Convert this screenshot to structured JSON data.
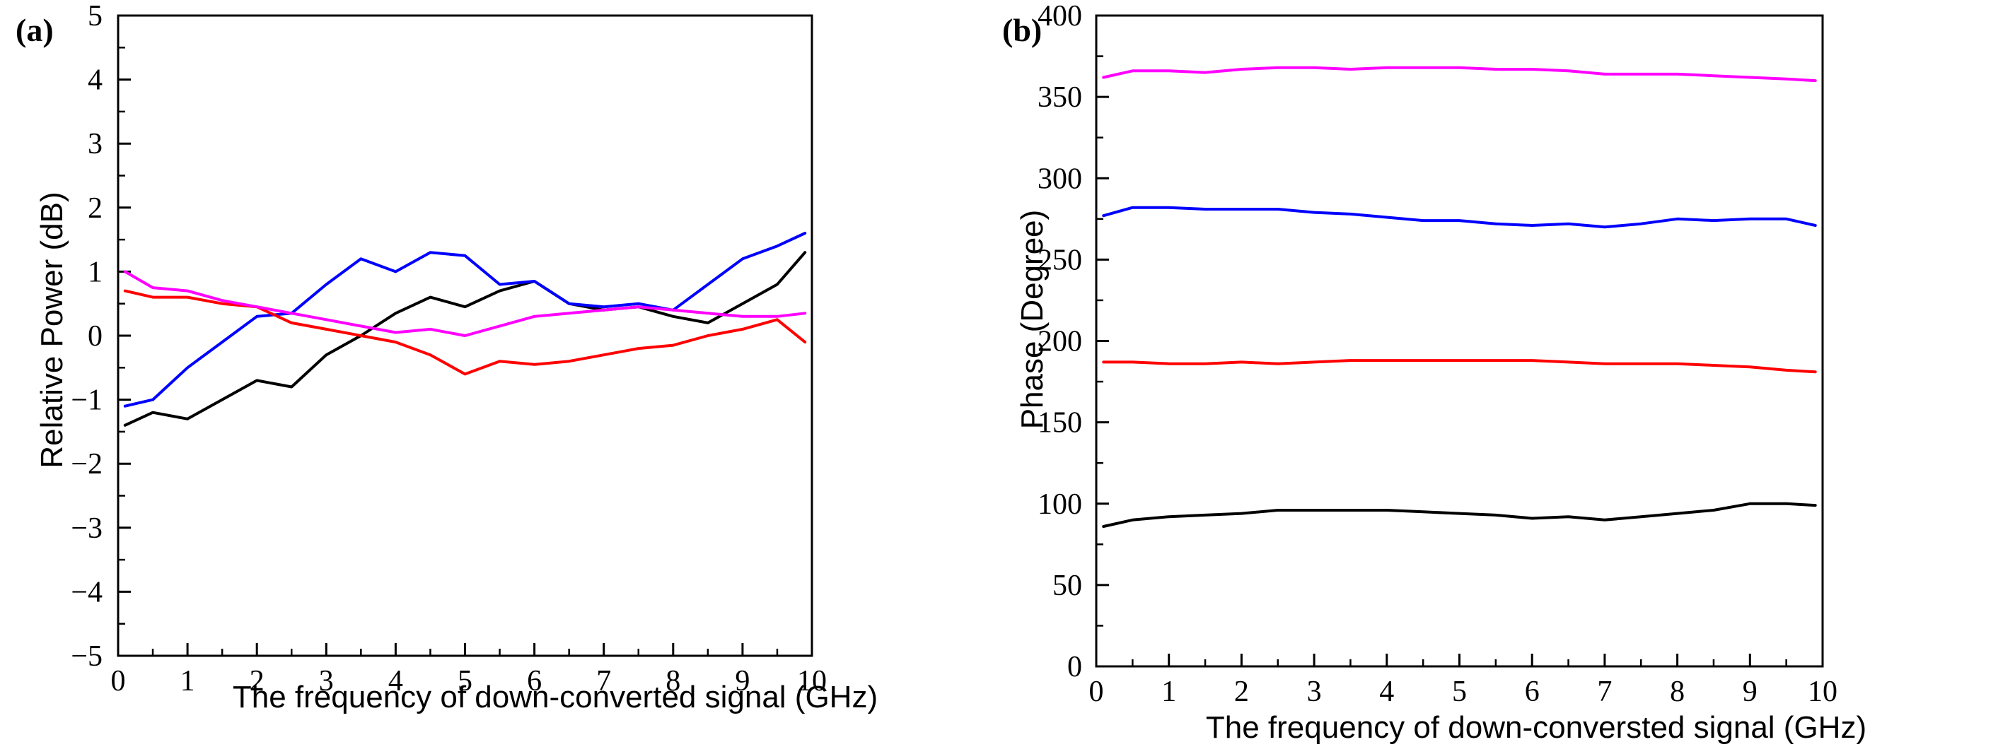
{
  "chart_data": [
    {
      "type": "line",
      "panel_label": "(a)",
      "xlabel": "The frequency of down-converted signal (GHz)",
      "ylabel": "Relative Power (dB)",
      "xlim": [
        0,
        10
      ],
      "ylim": [
        -5,
        5
      ],
      "xticks": [
        0,
        1,
        2,
        3,
        4,
        5,
        6,
        7,
        8,
        9,
        10
      ],
      "yticks": [
        -5,
        -4,
        -3,
        -2,
        -1,
        0,
        1,
        2,
        3,
        4,
        5
      ],
      "xtick_labels": [
        "0",
        "1",
        "2",
        "3",
        "4",
        "5",
        "6",
        "7",
        "8",
        "9",
        "10"
      ],
      "ytick_labels": [
        "−5",
        "−4",
        "−3",
        "−2",
        "−1",
        "0",
        "1",
        "2",
        "3",
        "4",
        "5"
      ],
      "grid": false,
      "series": [
        {
          "name": "black",
          "color": "#000000",
          "x": [
            0.1,
            0.5,
            1.0,
            1.5,
            2.0,
            2.5,
            3.0,
            3.5,
            4.0,
            4.5,
            5.0,
            5.5,
            6.0,
            6.5,
            7.0,
            7.5,
            8.0,
            8.5,
            9.0,
            9.5,
            9.9
          ],
          "y": [
            -1.4,
            -1.2,
            -1.3,
            -1.0,
            -0.7,
            -0.8,
            -0.3,
            0.0,
            0.35,
            0.6,
            0.45,
            0.7,
            0.85,
            0.5,
            0.4,
            0.45,
            0.3,
            0.2,
            0.5,
            0.8,
            1.3
          ]
        },
        {
          "name": "blue",
          "color": "#0000ff",
          "x": [
            0.1,
            0.5,
            1.0,
            1.5,
            2.0,
            2.5,
            3.0,
            3.5,
            4.0,
            4.5,
            5.0,
            5.5,
            6.0,
            6.5,
            7.0,
            7.5,
            8.0,
            8.5,
            9.0,
            9.5,
            9.9
          ],
          "y": [
            -1.1,
            -1.0,
            -0.5,
            -0.1,
            0.3,
            0.35,
            0.8,
            1.2,
            1.0,
            1.3,
            1.25,
            0.8,
            0.85,
            0.5,
            0.45,
            0.5,
            0.4,
            0.8,
            1.2,
            1.4,
            1.6
          ]
        },
        {
          "name": "red",
          "color": "#ff0000",
          "x": [
            0.1,
            0.5,
            1.0,
            1.5,
            2.0,
            2.5,
            3.0,
            3.5,
            4.0,
            4.5,
            5.0,
            5.5,
            6.0,
            6.5,
            7.0,
            7.5,
            8.0,
            8.5,
            9.0,
            9.5,
            9.9
          ],
          "y": [
            0.7,
            0.6,
            0.6,
            0.5,
            0.45,
            0.2,
            0.1,
            0.0,
            -0.1,
            -0.3,
            -0.6,
            -0.4,
            -0.45,
            -0.4,
            -0.3,
            -0.2,
            -0.15,
            0.0,
            0.1,
            0.25,
            -0.1
          ]
        },
        {
          "name": "magenta",
          "color": "#ff00ff",
          "x": [
            0.1,
            0.5,
            1.0,
            1.5,
            2.0,
            2.5,
            3.0,
            3.5,
            4.0,
            4.5,
            5.0,
            5.5,
            6.0,
            6.5,
            7.0,
            7.5,
            8.0,
            8.5,
            9.0,
            9.5,
            9.9
          ],
          "y": [
            1.0,
            0.75,
            0.7,
            0.55,
            0.45,
            0.35,
            0.25,
            0.15,
            0.05,
            0.1,
            0.0,
            0.15,
            0.3,
            0.35,
            0.4,
            0.45,
            0.4,
            0.35,
            0.3,
            0.3,
            0.35
          ]
        }
      ]
    },
    {
      "type": "line",
      "panel_label": "(b)",
      "xlabel": "The frequency of down-conversted signal (GHz)",
      "ylabel": "Phase (Degree)",
      "xlim": [
        0,
        10
      ],
      "ylim": [
        0,
        400
      ],
      "xticks": [
        0,
        1,
        2,
        3,
        4,
        5,
        6,
        7,
        8,
        9,
        10
      ],
      "yticks": [
        0,
        50,
        100,
        150,
        200,
        250,
        300,
        350,
        400
      ],
      "xtick_labels": [
        "0",
        "1",
        "2",
        "3",
        "4",
        "5",
        "6",
        "7",
        "8",
        "9",
        "10"
      ],
      "ytick_labels": [
        "0",
        "50",
        "100",
        "150",
        "200",
        "250",
        "300",
        "350",
        "400"
      ],
      "grid": false,
      "series": [
        {
          "name": "magenta",
          "color": "#ff00ff",
          "x": [
            0.1,
            0.5,
            1.0,
            1.5,
            2.0,
            2.5,
            3.0,
            3.5,
            4.0,
            4.5,
            5.0,
            5.5,
            6.0,
            6.5,
            7.0,
            7.5,
            8.0,
            8.5,
            9.0,
            9.5,
            9.9
          ],
          "y": [
            362,
            366,
            366,
            365,
            367,
            368,
            368,
            367,
            368,
            368,
            368,
            367,
            367,
            366,
            364,
            364,
            364,
            363,
            362,
            361,
            360
          ]
        },
        {
          "name": "blue",
          "color": "#0000ff",
          "x": [
            0.1,
            0.5,
            1.0,
            1.5,
            2.0,
            2.5,
            3.0,
            3.5,
            4.0,
            4.5,
            5.0,
            5.5,
            6.0,
            6.5,
            7.0,
            7.5,
            8.0,
            8.5,
            9.0,
            9.5,
            9.9
          ],
          "y": [
            277,
            282,
            282,
            281,
            281,
            281,
            279,
            278,
            276,
            274,
            274,
            272,
            271,
            272,
            270,
            272,
            275,
            274,
            275,
            275,
            271
          ]
        },
        {
          "name": "red",
          "color": "#ff0000",
          "x": [
            0.1,
            0.5,
            1.0,
            1.5,
            2.0,
            2.5,
            3.0,
            3.5,
            4.0,
            4.5,
            5.0,
            5.5,
            6.0,
            6.5,
            7.0,
            7.5,
            8.0,
            8.5,
            9.0,
            9.5,
            9.9
          ],
          "y": [
            187,
            187,
            186,
            186,
            187,
            186,
            187,
            188,
            188,
            188,
            188,
            188,
            188,
            187,
            186,
            186,
            186,
            185,
            184,
            182,
            181
          ]
        },
        {
          "name": "black",
          "color": "#000000",
          "x": [
            0.1,
            0.5,
            1.0,
            1.5,
            2.0,
            2.5,
            3.0,
            3.5,
            4.0,
            4.5,
            5.0,
            5.5,
            6.0,
            6.5,
            7.0,
            7.5,
            8.0,
            8.5,
            9.0,
            9.5,
            9.9
          ],
          "y": [
            86,
            90,
            92,
            93,
            94,
            96,
            96,
            96,
            96,
            95,
            94,
            93,
            91,
            92,
            90,
            92,
            94,
            96,
            100,
            100,
            99
          ]
        }
      ]
    }
  ]
}
